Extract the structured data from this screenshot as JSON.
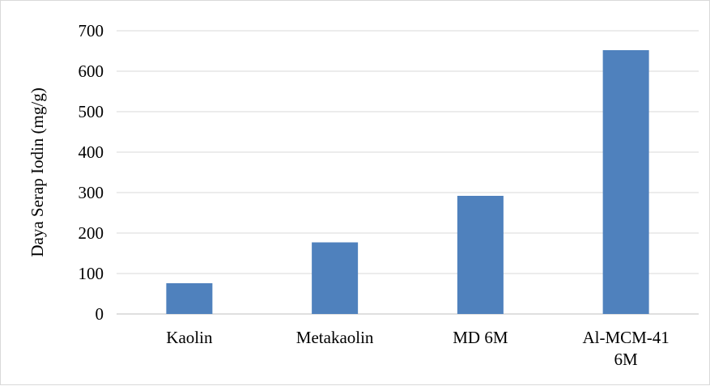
{
  "chart_data": {
    "type": "bar",
    "title": "",
    "xlabel": "",
    "ylabel": "Daya Serap Iodin (mg/g)",
    "categories": [
      [
        "Kaolin"
      ],
      [
        "Metakaolin"
      ],
      [
        "MD 6M"
      ],
      [
        "Al-MCM-41",
        "6M"
      ]
    ],
    "values": [
      76,
      177,
      292,
      652
    ],
    "ylim": [
      0,
      700
    ],
    "yticks": [
      0,
      100,
      200,
      300,
      400,
      500,
      600,
      700
    ],
    "grid": true,
    "legend": "none",
    "colors": {
      "bar": "#4f81bd",
      "grid": "#d9d9d9",
      "axis": "#bfbfbf"
    }
  }
}
